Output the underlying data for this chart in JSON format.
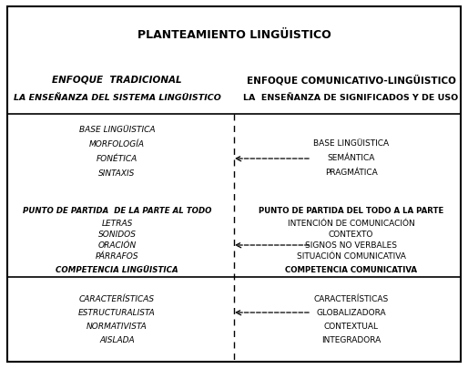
{
  "title": "PLANTEAMIENTO LINGÜISTICO",
  "left_header1": "ENFOQUE  TRADICIONAL",
  "left_header2": "LA ENSEÑANZA DEL SISTEMA LINGÜISTICO",
  "right_header1": "ENFOQUE COMUNICATIVO-LINGÜISTICO",
  "right_header2": "LA  ENSEÑANZA DE SIGNIFICADOS Y DE USO",
  "s1_left": [
    "BASE LINGÜISTICA",
    "MORFOLOGÍA",
    "FONÉTICA",
    "SINTAXIS"
  ],
  "s1_right": [
    "BASE LINGÜISTICA",
    "SEMÁNTICA",
    "PRAGMÁTICA"
  ],
  "s2_left_hdr": "PUNTO DE PARTIDA  DE LA PARTE AL TODO",
  "s2_left_items": [
    "LETRAS",
    "SONIDOS",
    "ORACIÓN",
    "PÁRRAFOS"
  ],
  "s2_left_ftr": "COMPETENCIA LINGÜISTICA",
  "s2_right_hdr": "PUNTO DE PARTIDA DEL TODO A LA PARTE",
  "s2_right_items": [
    "INTENCIÓN DE COMUNICACIÓN",
    "CONTEXTO",
    "SIGNOS NO VERBALES",
    "SITUACIÓN COMUNICATIVA"
  ],
  "s2_right_ftr": "COMPETENCIA COMUNICATIVA",
  "s3_left": [
    "CARACTERÍSTICAS",
    "ESTRUCTURALISTA",
    "NORMATIVISTA",
    "AISLADA"
  ],
  "s3_right": [
    "CARACTERÍSTICAS",
    "GLOBALIZADORA",
    "CONTEXTUAL",
    "INTEGRADORA"
  ]
}
